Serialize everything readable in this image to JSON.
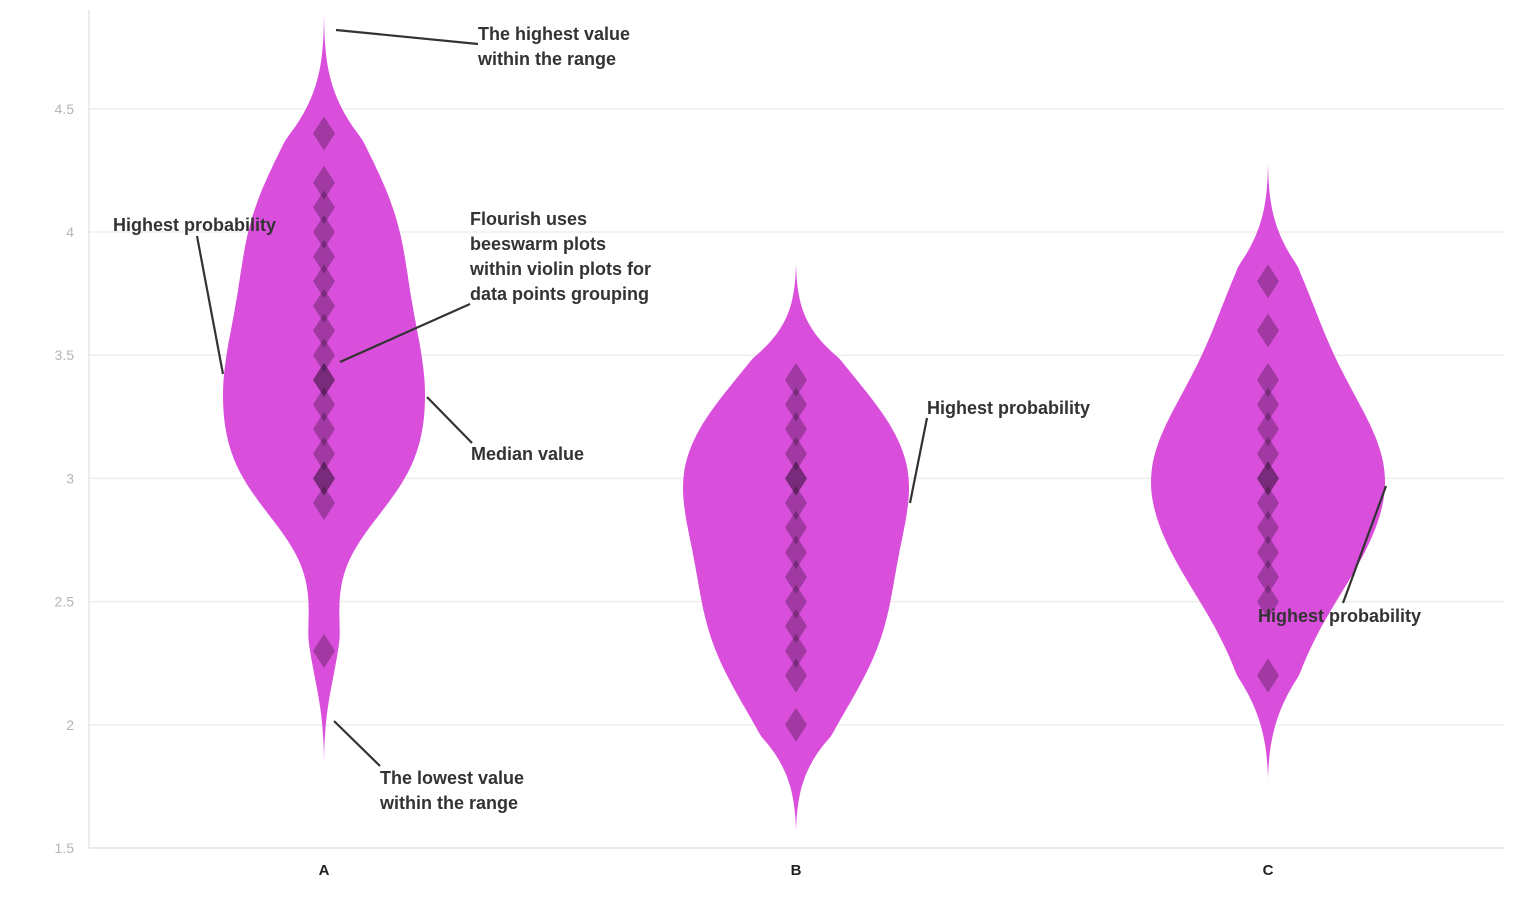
{
  "chart_data": {
    "type": "violin",
    "title": "",
    "xlabel": "",
    "ylabel": "",
    "ylim": [
      1.5,
      4.9
    ],
    "yticks": [
      "1.5",
      "2",
      "2.5",
      "3",
      "3.5",
      "4",
      "4.5"
    ],
    "grid": true,
    "colors": {
      "violin": "#d94fdc",
      "point": "#1e0a1e",
      "annotation": "#333333"
    },
    "categories": [
      "A",
      "B",
      "C"
    ],
    "violins": [
      {
        "name": "A",
        "min": 1.85,
        "max": 4.88,
        "median": 3.4,
        "peak": 3.4,
        "points": [
          4.4,
          4.2,
          4.1,
          4.0,
          3.9,
          3.8,
          3.7,
          3.6,
          3.5,
          3.4,
          3.4,
          3.3,
          3.2,
          3.1,
          3.0,
          3.0,
          2.9,
          2.3
        ]
      },
      {
        "name": "B",
        "min": 1.57,
        "max": 3.87,
        "median": 2.9,
        "peak": 2.9,
        "points": [
          3.4,
          3.3,
          3.2,
          3.1,
          3.0,
          3.0,
          2.9,
          2.8,
          2.7,
          2.6,
          2.5,
          2.4,
          2.3,
          2.2,
          2.0
        ]
      },
      {
        "name": "C",
        "min": 1.78,
        "max": 4.28,
        "median": 3.0,
        "peak": 3.0,
        "points": [
          3.8,
          3.6,
          3.4,
          3.3,
          3.2,
          3.1,
          3.0,
          3.0,
          2.9,
          2.8,
          2.7,
          2.6,
          2.5,
          2.2
        ]
      }
    ],
    "annotations": [
      {
        "lines": [
          "The highest value",
          "within the range"
        ]
      },
      {
        "lines": [
          "Highest probability"
        ]
      },
      {
        "lines": [
          "Flourish uses",
          "beeswarm plots",
          "within violin plots for",
          "data points grouping"
        ]
      },
      {
        "lines": [
          "Median value"
        ]
      },
      {
        "lines": [
          "The lowest value",
          "within the range"
        ]
      },
      {
        "lines": [
          "Highest probability"
        ]
      },
      {
        "lines": [
          "Highest probability"
        ]
      }
    ]
  }
}
